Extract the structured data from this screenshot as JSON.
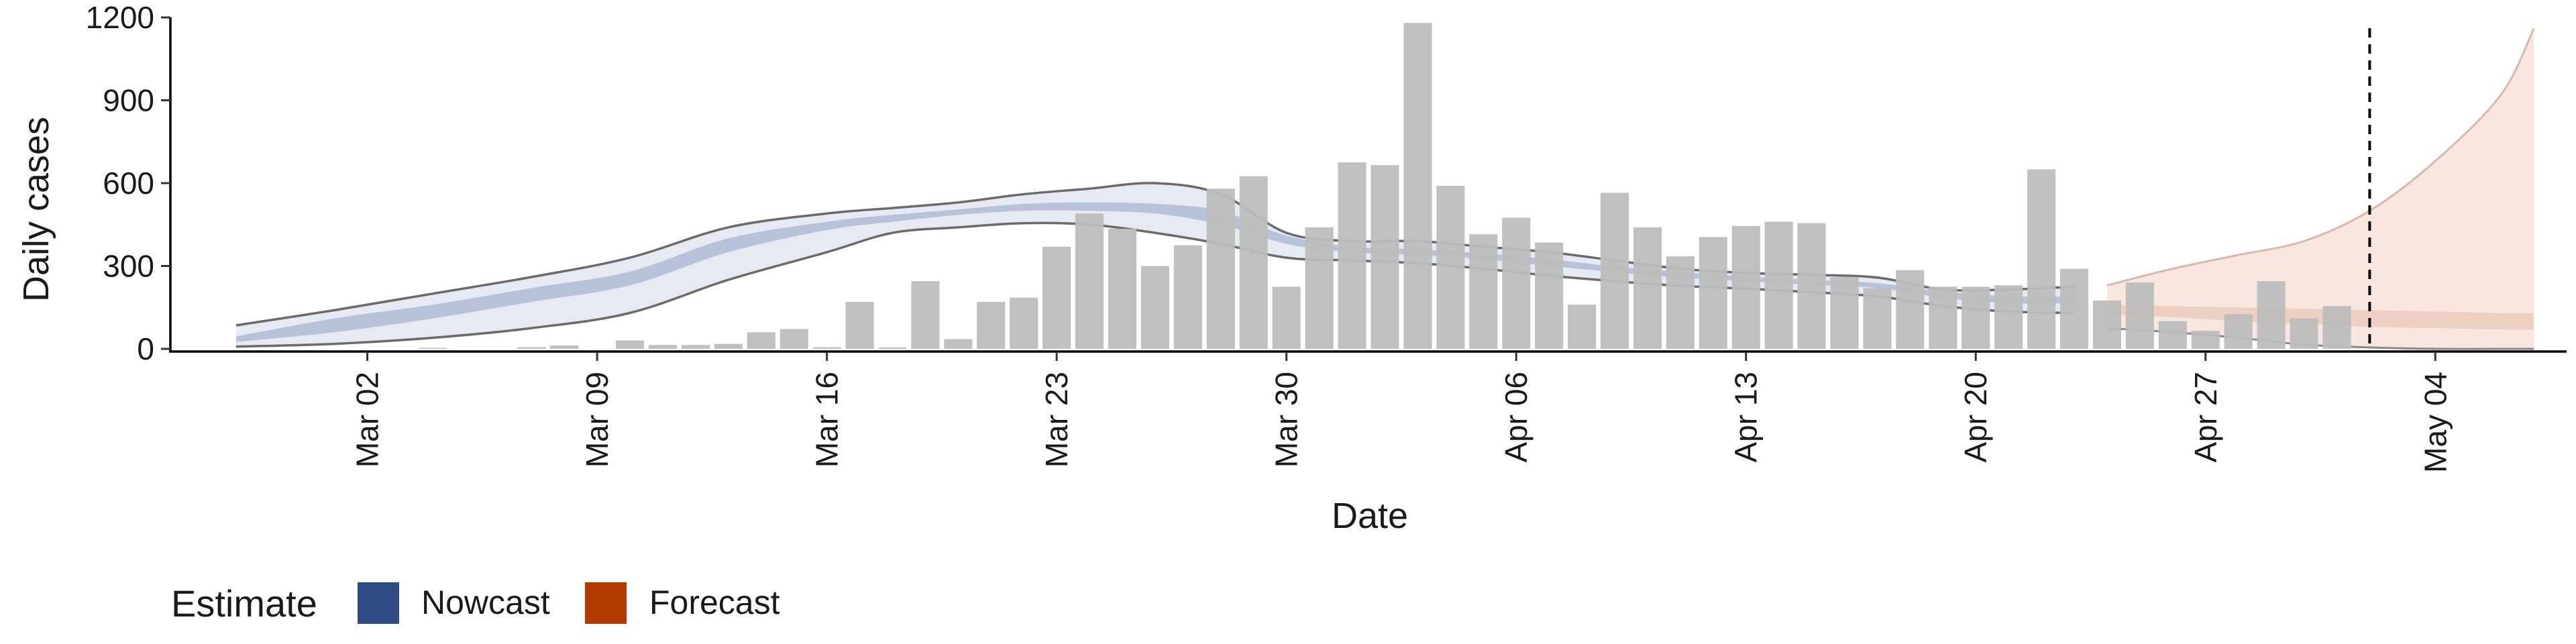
{
  "chart_data": {
    "type": "bar",
    "xlabel": "Date",
    "ylabel": "Daily cases",
    "ylim": [
      0,
      1200
    ],
    "xlim": [
      "2020-02-25",
      "2020-05-08"
    ],
    "y_ticks": [
      0,
      300,
      600,
      900,
      1200
    ],
    "x_ticks": [
      {
        "date": "2020-03-02",
        "label": "Mar 02"
      },
      {
        "date": "2020-03-09",
        "label": "Mar 09"
      },
      {
        "date": "2020-03-16",
        "label": "Mar 16"
      },
      {
        "date": "2020-03-23",
        "label": "Mar 23"
      },
      {
        "date": "2020-03-30",
        "label": "Mar 30"
      },
      {
        "date": "2020-04-06",
        "label": "Apr 06"
      },
      {
        "date": "2020-04-13",
        "label": "Apr 13"
      },
      {
        "date": "2020-04-20",
        "label": "Apr 20"
      },
      {
        "date": "2020-04-27",
        "label": "Apr 27"
      },
      {
        "date": "2020-05-04",
        "label": "May 04"
      }
    ],
    "grid": false,
    "bar_color": "#bdbdbd",
    "reported_cases": {
      "dates": [
        "2020-03-02",
        "2020-03-03",
        "2020-03-04",
        "2020-03-05",
        "2020-03-06",
        "2020-03-07",
        "2020-03-08",
        "2020-03-09",
        "2020-03-10",
        "2020-03-11",
        "2020-03-12",
        "2020-03-13",
        "2020-03-14",
        "2020-03-15",
        "2020-03-16",
        "2020-03-17",
        "2020-03-18",
        "2020-03-19",
        "2020-03-20",
        "2020-03-21",
        "2020-03-22",
        "2020-03-23",
        "2020-03-24",
        "2020-03-25",
        "2020-03-26",
        "2020-03-27",
        "2020-03-28",
        "2020-03-29",
        "2020-03-30",
        "2020-03-31",
        "2020-04-01",
        "2020-04-02",
        "2020-04-03",
        "2020-04-04",
        "2020-04-05",
        "2020-04-06",
        "2020-04-07",
        "2020-04-08",
        "2020-04-09",
        "2020-04-10",
        "2020-04-11",
        "2020-04-12",
        "2020-04-13",
        "2020-04-14",
        "2020-04-15",
        "2020-04-16",
        "2020-04-17",
        "2020-04-18",
        "2020-04-19",
        "2020-04-20",
        "2020-04-21",
        "2020-04-22",
        "2020-04-23",
        "2020-04-24",
        "2020-04-25",
        "2020-04-26",
        "2020-04-27",
        "2020-04-28",
        "2020-04-29",
        "2020-04-30",
        "2020-05-01",
        "2020-05-02"
      ],
      "values": [
        0,
        0,
        4,
        0,
        0,
        6,
        12,
        0,
        30,
        14,
        14,
        18,
        60,
        72,
        6,
        170,
        5,
        245,
        35,
        170,
        185,
        370,
        490,
        435,
        300,
        375,
        580,
        625,
        225,
        440,
        675,
        665,
        1180,
        590,
        415,
        475,
        385,
        160,
        565,
        440,
        335,
        405,
        445,
        460,
        455,
        260,
        220,
        285,
        225,
        225,
        230,
        650,
        290,
        175,
        240,
        100,
        65,
        125,
        245,
        110,
        155,
        0
      ]
    },
    "nowcast": {
      "dates": [
        "2020-02-27",
        "2020-03-01",
        "2020-03-04",
        "2020-03-07",
        "2020-03-10",
        "2020-03-13",
        "2020-03-16",
        "2020-03-18",
        "2020-03-20",
        "2020-03-22",
        "2020-03-24",
        "2020-03-26",
        "2020-03-28",
        "2020-03-30",
        "2020-04-01",
        "2020-04-03",
        "2020-04-05",
        "2020-04-07",
        "2020-04-09",
        "2020-04-11",
        "2020-04-13",
        "2020-04-15",
        "2020-04-17",
        "2020-04-19",
        "2020-04-21",
        "2020-04-23"
      ],
      "lower_90": [
        8,
        18,
        40,
        75,
        130,
        250,
        350,
        420,
        440,
        455,
        450,
        420,
        380,
        330,
        320,
        310,
        290,
        265,
        245,
        228,
        218,
        205,
        190,
        155,
        135,
        130
      ],
      "lower_50": [
        25,
        60,
        110,
        170,
        230,
        350,
        430,
        460,
        485,
        500,
        500,
        490,
        450,
        380,
        350,
        340,
        325,
        300,
        278,
        258,
        245,
        232,
        220,
        185,
        165,
        165
      ],
      "upper_50": [
        45,
        110,
        160,
        220,
        280,
        400,
        460,
        485,
        505,
        525,
        530,
        525,
        500,
        410,
        370,
        360,
        345,
        325,
        298,
        278,
        262,
        250,
        238,
        208,
        190,
        190
      ],
      "upper_90": [
        85,
        140,
        200,
        260,
        330,
        440,
        490,
        510,
        530,
        560,
        580,
        600,
        560,
        420,
        390,
        390,
        370,
        350,
        320,
        290,
        275,
        268,
        258,
        215,
        215,
        225
      ]
    },
    "forecast": {
      "dates": [
        "2020-04-24",
        "2020-04-26",
        "2020-04-28",
        "2020-04-30",
        "2020-05-02",
        "2020-05-04",
        "2020-05-06",
        "2020-05-07"
      ],
      "lower_90": [
        75,
        60,
        40,
        15,
        5,
        0,
        0,
        0
      ],
      "lower_50": [
        125,
        115,
        100,
        90,
        80,
        75,
        70,
        70
      ],
      "upper_50": [
        160,
        155,
        150,
        145,
        140,
        135,
        130,
        130
      ],
      "upper_90": [
        230,
        290,
        340,
        390,
        500,
        680,
        920,
        1160
      ]
    },
    "forecast_date": "2020-05-02",
    "legend": {
      "title": "Estimate",
      "position": "bottom-left",
      "entries": [
        {
          "label": "Nowcast",
          "color": "#2f4b86"
        },
        {
          "label": "Forecast",
          "color": "#b33a00"
        }
      ]
    }
  }
}
